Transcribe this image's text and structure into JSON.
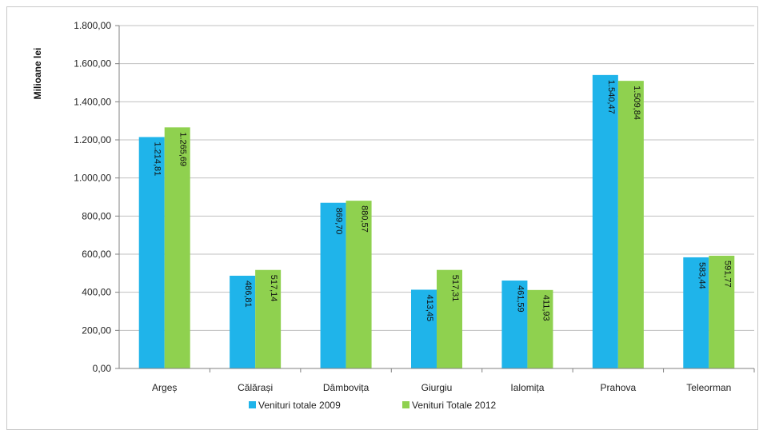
{
  "chart_data": {
    "type": "bar",
    "title": "",
    "xlabel": "",
    "ylabel": "Milioane lei",
    "ylim": [
      0,
      1800
    ],
    "ytick_step": 200,
    "ytick_labels": [
      "0,00",
      "200,00",
      "400,00",
      "600,00",
      "800,00",
      "1.000,00",
      "1.200,00",
      "1.400,00",
      "1.600,00",
      "1.800,00"
    ],
    "grid": true,
    "legend_position": "bottom",
    "categories": [
      "Argeș",
      "Călărași",
      "Dâmbovița",
      "Giurgiu",
      "Ialomița",
      "Prahova",
      "Teleorman"
    ],
    "series": [
      {
        "name": "Venituri totale  2009",
        "color": "#1fb4ea",
        "values": [
          1214.81,
          486.81,
          869.7,
          413.45,
          461.59,
          1540.47,
          583.44
        ],
        "labels": [
          "1.214,81",
          "486,81",
          "869,70",
          "413,45",
          "461,59",
          "1.540,47",
          "583,44"
        ]
      },
      {
        "name": "Venituri Totale  2012",
        "color": "#8fd14f",
        "values": [
          1265.69,
          517.14,
          880.57,
          517.31,
          411.93,
          1509.84,
          591.77
        ],
        "labels": [
          "1.265,69",
          "517,14",
          "880,57",
          "517,31",
          "411,93",
          "1.509,84",
          "591,77"
        ]
      }
    ]
  }
}
